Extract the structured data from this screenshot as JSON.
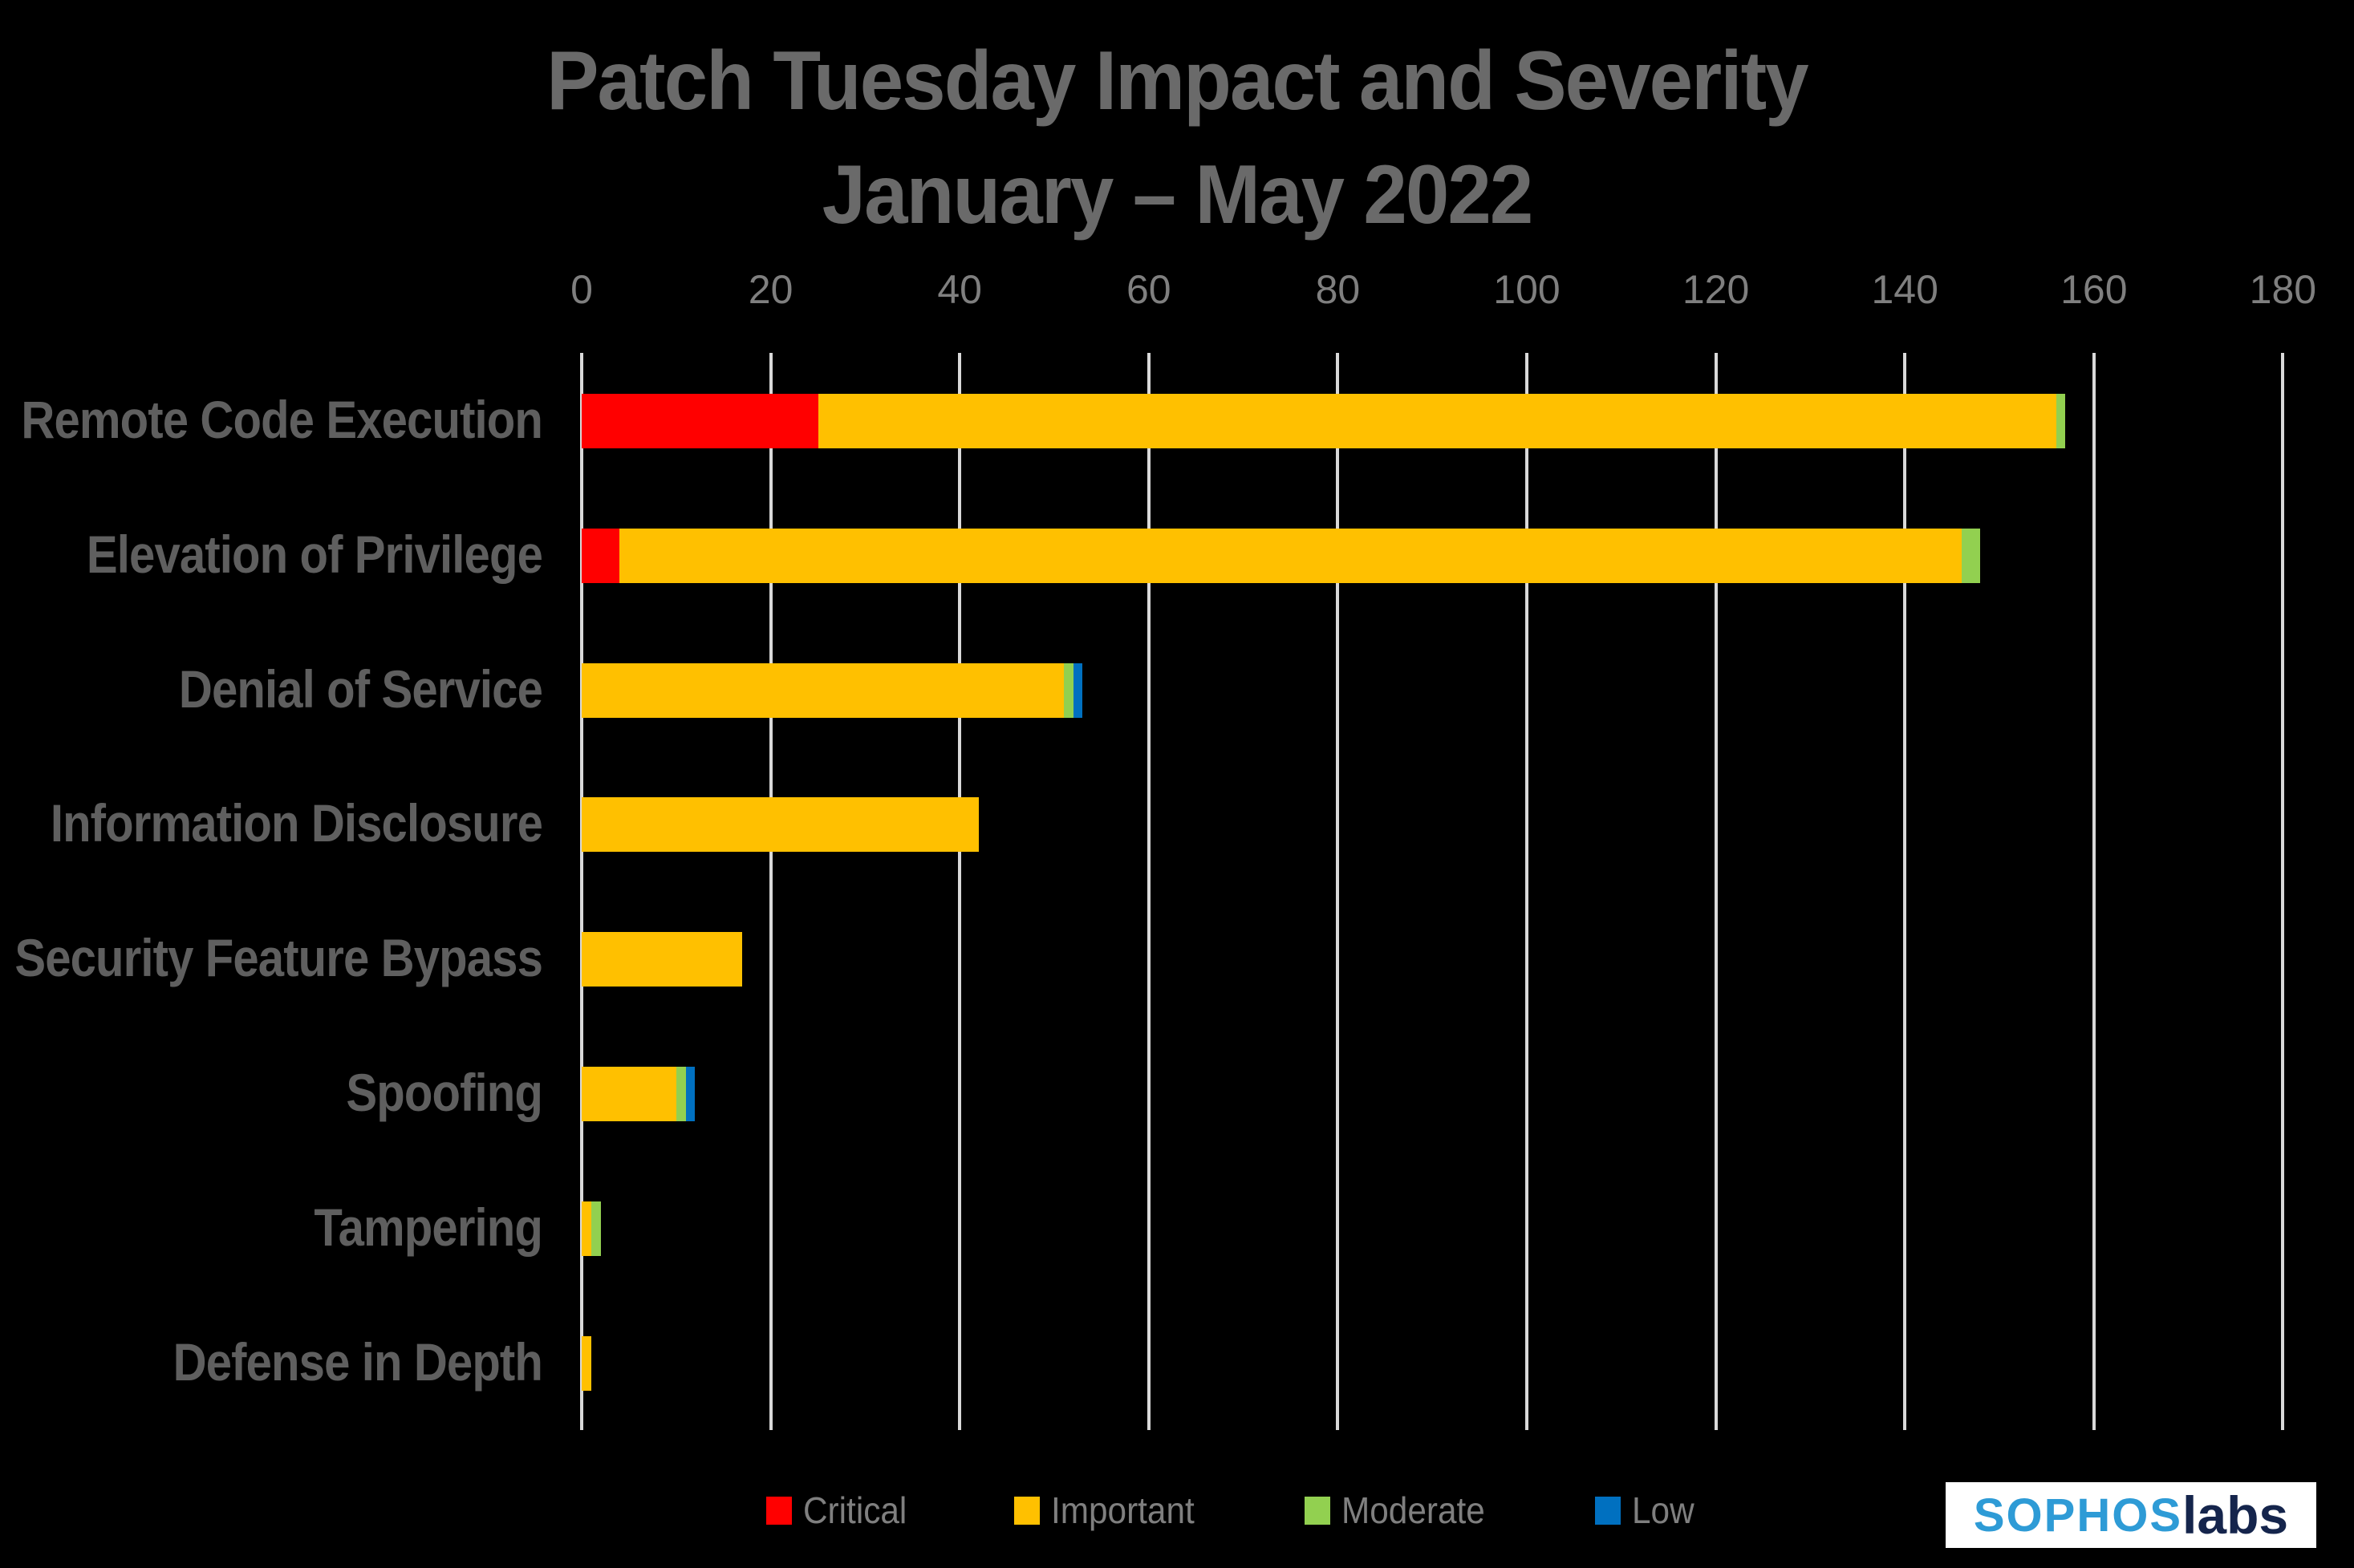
{
  "chart_data": {
    "type": "bar",
    "orientation": "horizontal-stacked",
    "title": "Patch Tuesday Impact and Severity",
    "subtitle": "January – May 2022",
    "categories": [
      "Remote Code Execution",
      "Elevation of Privilege",
      "Denial of Service",
      "Information Disclosure",
      "Security Feature Bypass",
      "Spoofing",
      "Tampering",
      "Defense in Depth"
    ],
    "series": [
      {
        "name": "Critical",
        "color": "#ff0000",
        "values": [
          25,
          4,
          0,
          0,
          0,
          0,
          0,
          0
        ]
      },
      {
        "name": "Important",
        "color": "#ffc000",
        "values": [
          131,
          142,
          51,
          42,
          17,
          10,
          1,
          1
        ]
      },
      {
        "name": "Moderate",
        "color": "#92d050",
        "values": [
          1,
          2,
          1,
          0,
          0,
          1,
          1,
          0
        ]
      },
      {
        "name": "Low",
        "color": "#0070c0",
        "values": [
          0,
          0,
          1,
          0,
          0,
          1,
          0,
          0
        ]
      }
    ],
    "xlim": [
      0,
      180
    ],
    "xticks": [
      0,
      20,
      40,
      60,
      80,
      100,
      120,
      140,
      160,
      180
    ],
    "grid": true,
    "legend_position": "bottom",
    "background_color": "#000000",
    "gridline_color": "#d9d9d9",
    "title_color": "#6a6a6a",
    "axis_label_color": "#7f7f7f",
    "category_label_color": "#5f5f5f"
  },
  "logo": {
    "sophos": "SOPHOS",
    "labs": "labs"
  }
}
